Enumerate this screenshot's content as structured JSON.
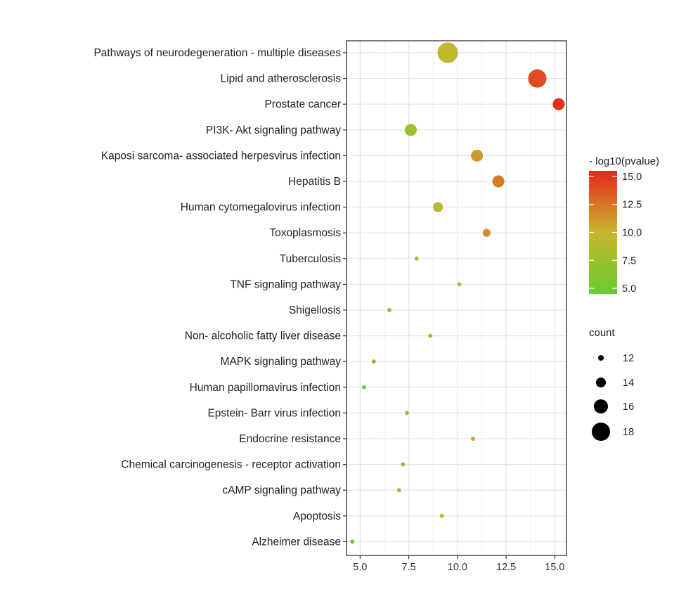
{
  "chart_data": {
    "type": "scatter",
    "title": "",
    "xlabel": "",
    "ylabel": "",
    "xlim": [
      4.3,
      15.6
    ],
    "xticks": [
      5.0,
      7.5,
      10.0,
      12.5,
      15.0
    ],
    "xtick_labels": [
      "5.0",
      "7.5",
      "10.0",
      "12.5",
      "15.0"
    ],
    "grid": true,
    "categories": [
      "Pathways of neurodegeneration -  multiple diseases",
      "Lipid and atherosclerosis",
      "Prostate cancer",
      "PI3K- Akt signaling pathway",
      "Kaposi sarcoma- associated herpesvirus infection",
      "Hepatitis B",
      "Human cytomegalovirus infection",
      "Toxoplasmosis",
      "Tuberculosis",
      "TNF signaling pathway",
      "Shigellosis",
      "Non- alcoholic fatty liver disease",
      "MAPK signaling pathway",
      "Human papillomavirus infection",
      "Epstein- Barr virus infection",
      "Endocrine resistance",
      "Chemical carcinogenesis -  receptor activation",
      "cAMP signaling pathway",
      "Apoptosis",
      "Alzheimer disease"
    ],
    "points": [
      {
        "x": 9.5,
        "pvalue": 9.5,
        "count": 19
      },
      {
        "x": 14.1,
        "pvalue": 14.1,
        "count": 18
      },
      {
        "x": 15.2,
        "pvalue": 15.2,
        "count": 15
      },
      {
        "x": 7.6,
        "pvalue": 7.6,
        "count": 15
      },
      {
        "x": 11.0,
        "pvalue": 11.0,
        "count": 15
      },
      {
        "x": 12.1,
        "pvalue": 12.1,
        "count": 15
      },
      {
        "x": 9.0,
        "pvalue": 9.0,
        "count": 14
      },
      {
        "x": 11.5,
        "pvalue": 11.5,
        "count": 13
      },
      {
        "x": 7.9,
        "pvalue": 7.9,
        "count": 10
      },
      {
        "x": 10.1,
        "pvalue": 10.1,
        "count": 10
      },
      {
        "x": 6.5,
        "pvalue": 6.5,
        "count": 10
      },
      {
        "x": 8.6,
        "pvalue": 8.6,
        "count": 10
      },
      {
        "x": 5.7,
        "pvalue": 5.7,
        "count": 10
      },
      {
        "x": 5.2,
        "pvalue": 5.2,
        "count": 10
      },
      {
        "x": 7.4,
        "pvalue": 7.4,
        "count": 10
      },
      {
        "x": 10.8,
        "pvalue": 10.8,
        "count": 10
      },
      {
        "x": 7.2,
        "pvalue": 7.2,
        "count": 10
      },
      {
        "x": 7.0,
        "pvalue": 7.0,
        "count": 10
      },
      {
        "x": 9.2,
        "pvalue": 9.2,
        "count": 10
      },
      {
        "x": 4.6,
        "pvalue": 4.6,
        "count": 10
      }
    ],
    "color_legend": {
      "title": "- log10(pvalue)",
      "range": [
        4.5,
        15.5
      ],
      "ticks": [
        5.0,
        7.5,
        10.0,
        12.5,
        15.0
      ],
      "tick_labels": [
        "5.0",
        "7.5",
        "10.0",
        "12.5",
        "15.0"
      ],
      "low_color": "#66cc33",
      "mid_color": "#c8b52e",
      "high_color": "#e8271d",
      "placement": "right"
    },
    "size_legend": {
      "title": "count",
      "values": [
        12,
        14,
        16,
        18
      ],
      "labels": [
        "12",
        "14",
        "16",
        "18"
      ],
      "placement": "right"
    }
  }
}
